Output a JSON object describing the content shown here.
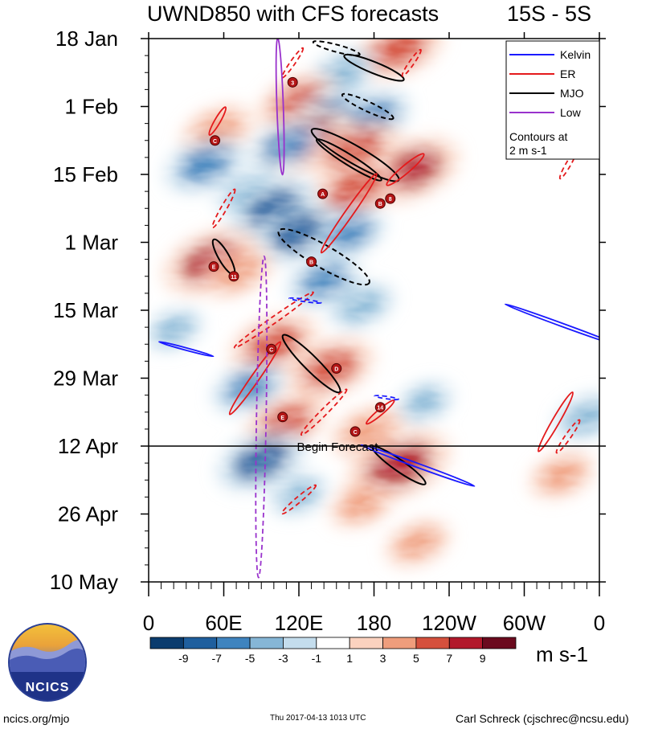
{
  "chart_data": {
    "type": "heatmap",
    "title": "UWND850 with CFS forecasts",
    "region": "15S - 5S",
    "variable": "850 hPa zonal wind anomaly",
    "units": "m s-1",
    "y_ticks": [
      "18 Jan",
      "1 Feb",
      "15 Feb",
      "1 Mar",
      "15 Mar",
      "29 Mar",
      "12 Apr",
      "26 Apr",
      "10 May"
    ],
    "x_ticks": [
      "0",
      "60E",
      "120E",
      "180",
      "120W",
      "60W",
      "0"
    ],
    "x_range_deg": [
      0,
      360
    ],
    "y_range_days_from_18jan": [
      0,
      112
    ],
    "forecast_start": {
      "label": "Begin Forecast",
      "day": 84
    },
    "colorbar": {
      "levels": [
        "-9",
        "-7",
        "-5",
        "-3",
        "-1",
        "1",
        "3",
        "5",
        "7",
        "9"
      ],
      "colors": [
        "#0b3c6e",
        "#1f5f9e",
        "#3f84bf",
        "#86b6d6",
        "#c4dded",
        "#ffffff",
        "#fbd2bf",
        "#ef9d7c",
        "#d5503d",
        "#b2182b",
        "#6b0a1e"
      ]
    },
    "legend": {
      "entries": [
        {
          "label": "Kelvin",
          "color": "#1a1aff"
        },
        {
          "label": "ER",
          "color": "#e41a1c"
        },
        {
          "label": "MJO",
          "color": "#000000"
        },
        {
          "label": "Low",
          "color": "#9932cc"
        }
      ],
      "note_line1": "Contours at",
      "note_line2": "2 m s-1",
      "position": "top-right"
    },
    "anomaly_centers": [
      {
        "lon": 200,
        "day": 2,
        "value": 7
      },
      {
        "lon": 155,
        "day": 7,
        "value": -4
      },
      {
        "lon": 120,
        "day": 13,
        "value": 6
      },
      {
        "lon": 145,
        "day": 16,
        "value": -6
      },
      {
        "lon": 180,
        "day": 16,
        "value": -5
      },
      {
        "lon": 55,
        "day": 19,
        "value": 5
      },
      {
        "lon": 125,
        "day": 21,
        "value": 8
      },
      {
        "lon": 110,
        "day": 22,
        "value": -5
      },
      {
        "lon": 165,
        "day": 23,
        "value": 7
      },
      {
        "lon": 45,
        "day": 26,
        "value": -6
      },
      {
        "lon": 210,
        "day": 27,
        "value": 8
      },
      {
        "lon": 165,
        "day": 31,
        "value": 7
      },
      {
        "lon": 80,
        "day": 32,
        "value": -4
      },
      {
        "lon": 100,
        "day": 35,
        "value": -7
      },
      {
        "lon": 120,
        "day": 40,
        "value": -7
      },
      {
        "lon": 160,
        "day": 40,
        "value": -5
      },
      {
        "lon": 50,
        "day": 46,
        "value": 8
      },
      {
        "lon": 70,
        "day": 48,
        "value": 5
      },
      {
        "lon": 140,
        "day": 50,
        "value": -5
      },
      {
        "lon": 170,
        "day": 55,
        "value": -4
      },
      {
        "lon": 20,
        "day": 60,
        "value": -3
      },
      {
        "lon": 100,
        "day": 63,
        "value": 7
      },
      {
        "lon": 145,
        "day": 68,
        "value": 7
      },
      {
        "lon": 80,
        "day": 72,
        "value": -5
      },
      {
        "lon": 220,
        "day": 75,
        "value": -3
      },
      {
        "lon": 350,
        "day": 78,
        "value": -4
      },
      {
        "lon": 110,
        "day": 79,
        "value": 6
      },
      {
        "lon": 175,
        "day": 81,
        "value": 5
      },
      {
        "lon": 90,
        "day": 87,
        "value": -7
      },
      {
        "lon": 200,
        "day": 88,
        "value": 9
      },
      {
        "lon": 170,
        "day": 96,
        "value": 4
      },
      {
        "lon": 330,
        "day": 90,
        "value": 4
      },
      {
        "lon": 215,
        "day": 104,
        "value": 4
      },
      {
        "lon": 120,
        "day": 94,
        "value": -3
      }
    ],
    "wave_contours": [
      {
        "type": "MJO",
        "lon": 160,
        "day": 25,
        "len": 95,
        "wid": 13,
        "angle": 32,
        "dashed": false
      },
      {
        "type": "MJO",
        "lon": 165,
        "day": 24,
        "len": 125,
        "wid": 22,
        "angle": 30,
        "dashed": false
      },
      {
        "type": "MJO",
        "lon": 180,
        "day": 6,
        "len": 80,
        "wid": 14,
        "angle": 22,
        "dashed": false
      },
      {
        "type": "MJO",
        "lon": 60,
        "day": 45,
        "len": 50,
        "wid": 13,
        "angle": 60,
        "dashed": false
      },
      {
        "type": "MJO",
        "lon": 130,
        "day": 67,
        "len": 100,
        "wid": 18,
        "angle": 45,
        "dashed": false
      },
      {
        "type": "MJO",
        "lon": 200,
        "day": 88,
        "len": 80,
        "wid": 14,
        "angle": 35,
        "dashed": false
      },
      {
        "type": "MJO",
        "lon": 175,
        "day": 14,
        "len": 70,
        "wid": 12,
        "angle": 25,
        "dashed": true
      },
      {
        "type": "MJO",
        "lon": 140,
        "day": 45,
        "len": 130,
        "wid": 28,
        "angle": 30,
        "dashed": true
      },
      {
        "type": "MJO",
        "lon": 150,
        "day": 2,
        "len": 60,
        "wid": 9,
        "angle": 15,
        "dashed": true
      },
      {
        "type": "ER",
        "lon": 160,
        "day": 36,
        "len": 120,
        "wid": 10,
        "angle": -55,
        "dashed": false
      },
      {
        "type": "ER",
        "lon": 55,
        "day": 17,
        "len": 40,
        "wid": 7,
        "angle": -60,
        "dashed": false
      },
      {
        "type": "ER",
        "lon": 85,
        "day": 70,
        "len": 110,
        "wid": 10,
        "angle": -55,
        "dashed": false
      },
      {
        "type": "ER",
        "lon": 185,
        "day": 77,
        "len": 45,
        "wid": 7,
        "angle": -40,
        "dashed": false
      },
      {
        "type": "ER",
        "lon": 325,
        "day": 79,
        "len": 85,
        "wid": 9,
        "angle": -60,
        "dashed": false
      },
      {
        "type": "ER",
        "lon": 205,
        "day": 27,
        "len": 60,
        "wid": 10,
        "angle": -40,
        "dashed": false
      },
      {
        "type": "ER",
        "lon": 60,
        "day": 35,
        "len": 55,
        "wid": 7,
        "angle": -60,
        "dashed": true
      },
      {
        "type": "ER",
        "lon": 100,
        "day": 58,
        "len": 120,
        "wid": 8,
        "angle": -35,
        "dashed": true
      },
      {
        "type": "ER",
        "lon": 140,
        "day": 77,
        "len": 80,
        "wid": 8,
        "angle": -45,
        "dashed": true
      },
      {
        "type": "ER",
        "lon": 120,
        "day": 95,
        "len": 55,
        "wid": 7,
        "angle": -40,
        "dashed": true
      },
      {
        "type": "ER",
        "lon": 335,
        "day": 82,
        "len": 50,
        "wid": 7,
        "angle": -55,
        "dashed": true
      },
      {
        "type": "ER",
        "lon": 335,
        "day": 26,
        "len": 40,
        "wid": 6,
        "angle": -60,
        "dashed": true
      },
      {
        "type": "ER",
        "lon": 115,
        "day": 5,
        "len": 45,
        "wid": 6,
        "angle": -55,
        "dashed": true
      },
      {
        "type": "ER",
        "lon": 210,
        "day": 5,
        "len": 40,
        "wid": 6,
        "angle": -55,
        "dashed": true
      },
      {
        "type": "Kelvin",
        "lon": 215,
        "day": 88,
        "len": 150,
        "wid": 5,
        "angle": 20,
        "dashed": false
      },
      {
        "type": "Kelvin",
        "lon": 30,
        "day": 64,
        "len": 70,
        "wid": 3,
        "angle": 15,
        "dashed": false
      },
      {
        "type": "Kelvin",
        "lon": 330,
        "day": 59,
        "len": 150,
        "wid": 4,
        "angle": 20,
        "dashed": false
      },
      {
        "type": "Kelvin",
        "lon": 125,
        "day": 54,
        "len": 40,
        "wid": 3,
        "angle": 8,
        "dashed": true
      },
      {
        "type": "Kelvin",
        "lon": 190,
        "day": 74,
        "len": 30,
        "wid": 3,
        "angle": 8,
        "dashed": true
      },
      {
        "type": "Low",
        "lon": 90,
        "day": 78,
        "len": 400,
        "wid": 12,
        "angle": 91,
        "dashed": true
      },
      {
        "type": "Low",
        "lon": 105,
        "day": 14,
        "len": 170,
        "wid": 8,
        "angle": 88,
        "dashed": false
      }
    ],
    "storm_markers": [
      {
        "lon": 115,
        "day": 9,
        "label": "3"
      },
      {
        "lon": 53,
        "day": 21,
        "label": "C"
      },
      {
        "lon": 139,
        "day": 32,
        "label": "A"
      },
      {
        "lon": 185,
        "day": 34,
        "label": "B"
      },
      {
        "lon": 193,
        "day": 33,
        "label": "8"
      },
      {
        "lon": 130,
        "day": 46,
        "label": "B"
      },
      {
        "lon": 52,
        "day": 47,
        "label": "E"
      },
      {
        "lon": 68,
        "day": 49,
        "label": "11"
      },
      {
        "lon": 98,
        "day": 64,
        "label": "C"
      },
      {
        "lon": 150,
        "day": 68,
        "label": "D"
      },
      {
        "lon": 107,
        "day": 78,
        "label": "E"
      },
      {
        "lon": 185,
        "day": 76,
        "label": "14"
      },
      {
        "lon": 165,
        "day": 81,
        "label": "C"
      }
    ]
  },
  "header": {
    "title": "UWND850 with CFS forecasts",
    "region": "15S - 5S"
  },
  "footer": {
    "logo_text": "NCICS",
    "url": "ncics.org/mjo",
    "timestamp": "Thu 2017-04-13 1013 UTC",
    "author": "Carl Schreck (cjschrec@ncsu.edu)"
  }
}
